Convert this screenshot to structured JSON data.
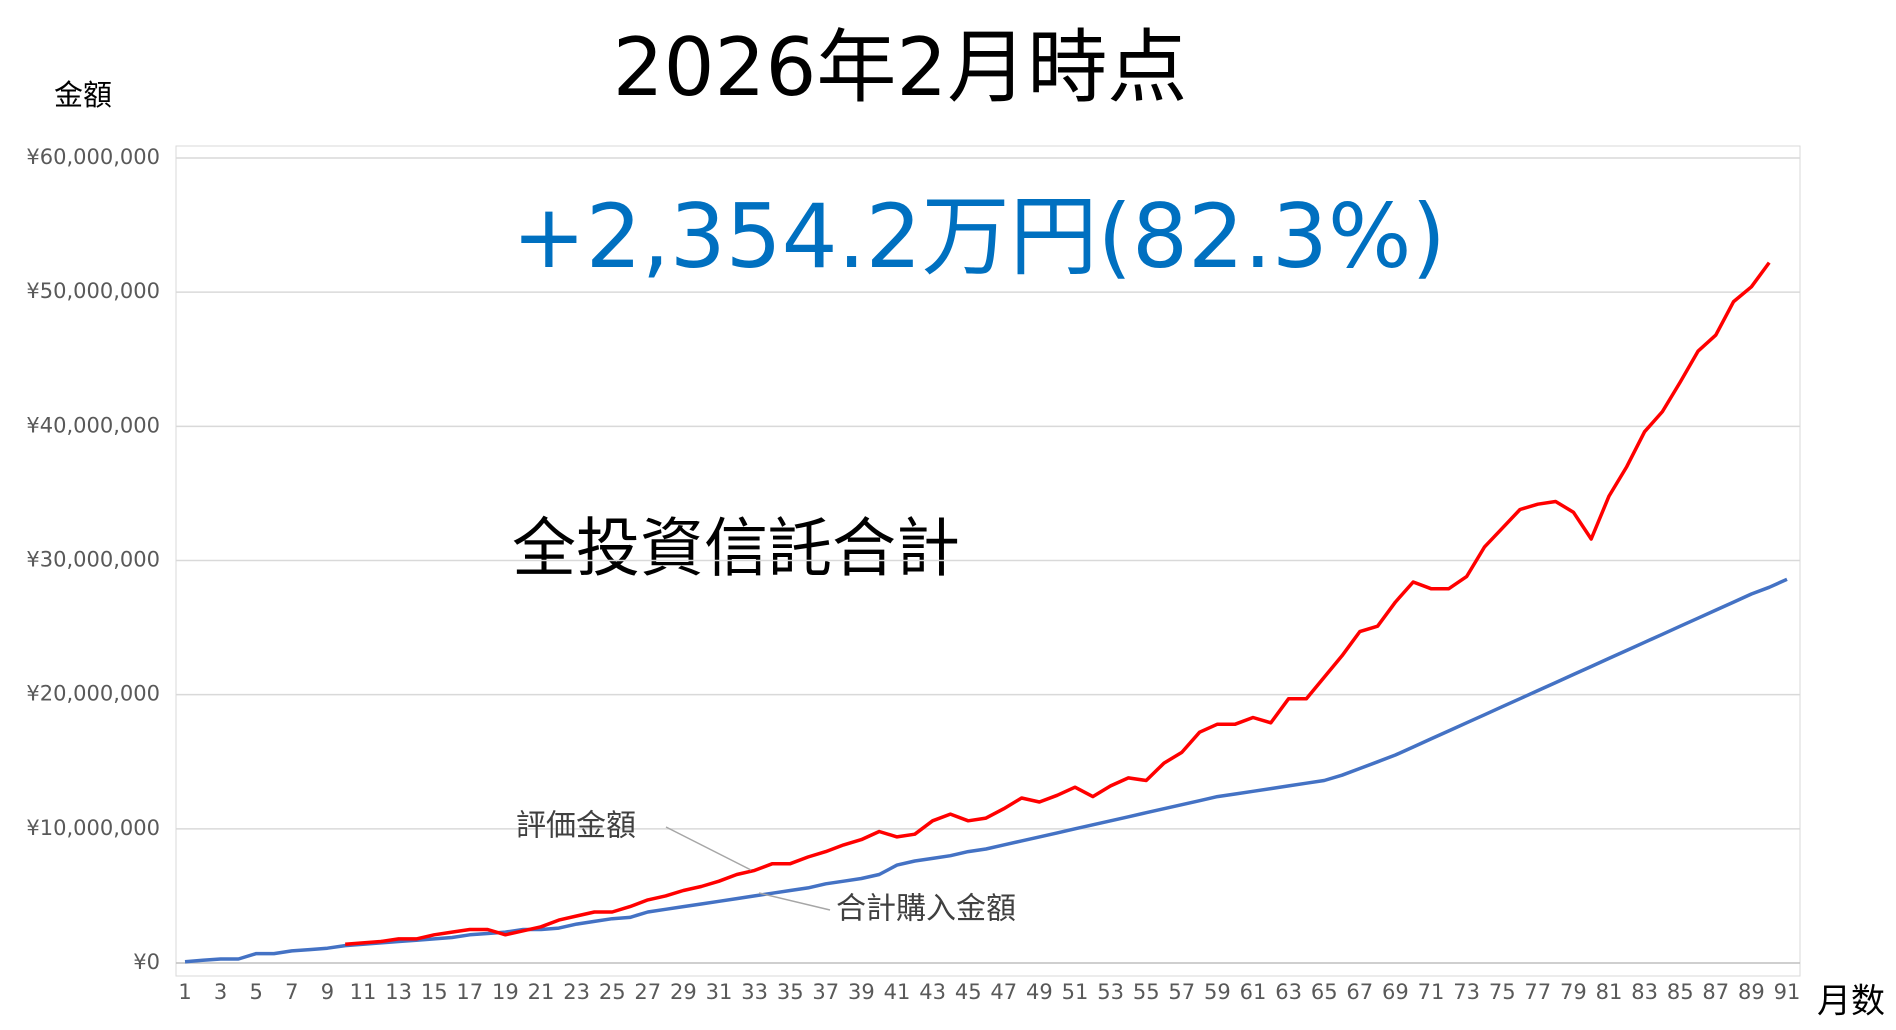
{
  "chart_data": {
    "type": "line",
    "title": "2026年2月時点",
    "annotations": [
      "+2,354.2万円(82.3%)",
      "全投資信託合計"
    ],
    "y_label": "金額",
    "x_label": "月数",
    "categories": [
      1,
      null,
      3,
      null,
      5,
      null,
      7,
      null,
      9,
      null,
      11,
      null,
      13,
      null,
      15,
      null,
      17,
      null,
      19,
      null,
      21,
      null,
      23,
      null,
      25,
      null,
      27,
      null,
      29,
      null,
      31,
      null,
      33,
      null,
      35,
      null,
      37,
      null,
      39,
      null,
      41,
      null,
      43,
      null,
      45,
      null,
      47,
      null,
      49,
      null,
      51,
      null,
      53,
      null,
      55,
      null,
      57,
      null,
      59,
      null,
      61,
      null,
      63,
      null,
      65,
      null,
      67,
      null,
      69,
      null,
      71,
      null,
      73,
      null,
      75,
      null,
      77,
      null,
      79,
      null,
      81,
      null,
      83,
      null,
      85,
      null,
      87,
      null,
      89,
      null,
      91
    ],
    "series": [
      {
        "name": "評価金額",
        "color": "#ff0000",
        "values": [
          null,
          null,
          null,
          null,
          null,
          null,
          null,
          null,
          null,
          1400000,
          1500000,
          1600000,
          1800000,
          1800000,
          2100000,
          2300000,
          2500000,
          2500000,
          2100000,
          2400000,
          2700000,
          3200000,
          3500000,
          3800000,
          3800000,
          4200000,
          4700000,
          5000000,
          5400000,
          5700000,
          6100000,
          6600000,
          6900000,
          7400000,
          7400000,
          7900000,
          8300000,
          8800000,
          9200000,
          9800000,
          9400000,
          9600000,
          10600000,
          11100000,
          10600000,
          10800000,
          11500000,
          12300000,
          12000000,
          12500000,
          13100000,
          12400000,
          13200000,
          13800000,
          13600000,
          14900000,
          15700000,
          17200000,
          17800000,
          17800000,
          18300000,
          17900000,
          19700000,
          19700000,
          21300000,
          22900000,
          24700000,
          25100000,
          26900000,
          28400000,
          27900000,
          27900000,
          28800000,
          31000000,
          32400000,
          33800000,
          34200000,
          34400000,
          33600000,
          31600000,
          34800000,
          37000000,
          39600000,
          41100000,
          43300000,
          45600000,
          46800000,
          49300000,
          50400000,
          52200000,
          null
        ]
      },
      {
        "name": "合計購入金額",
        "color": "#4472c4",
        "values": [
          100000,
          200000,
          300000,
          300000,
          700000,
          700000,
          900000,
          1000000,
          1100000,
          1300000,
          1400000,
          1500000,
          1600000,
          1700000,
          1800000,
          1900000,
          2100000,
          2200000,
          2300000,
          2500000,
          2500000,
          2600000,
          2900000,
          3100000,
          3300000,
          3400000,
          3800000,
          4000000,
          4200000,
          4400000,
          4600000,
          4800000,
          5000000,
          5200000,
          5400000,
          5600000,
          5900000,
          6100000,
          6300000,
          6600000,
          7300000,
          7600000,
          7800000,
          8000000,
          8300000,
          8500000,
          8800000,
          9100000,
          9400000,
          9700000,
          10000000,
          10300000,
          10600000,
          10900000,
          11200000,
          11500000,
          11800000,
          12100000,
          12400000,
          12600000,
          12800000,
          13000000,
          13200000,
          13400000,
          13600000,
          14000000,
          14500000,
          15000000,
          15500000,
          16100000,
          16700000,
          17300000,
          17900000,
          18500000,
          19100000,
          19700000,
          20300000,
          20900000,
          21500000,
          22100000,
          22700000,
          23300000,
          23900000,
          24500000,
          25100000,
          25700000,
          26300000,
          26900000,
          27500000,
          28000000,
          28600000
        ]
      }
    ],
    "ylim": [
      0,
      60000000
    ],
    "yticks": [
      {
        "value": 0,
        "label": "¥0"
      },
      {
        "value": 10000000,
        "label": "¥10,000,000"
      },
      {
        "value": 20000000,
        "label": "¥20,000,000"
      },
      {
        "value": 30000000,
        "label": "¥30,000,000"
      },
      {
        "value": 40000000,
        "label": "¥40,000,000"
      },
      {
        "value": 50000000,
        "label": "¥50,000,000"
      },
      {
        "value": 60000000,
        "label": "¥60,000,000"
      }
    ],
    "grid": true
  }
}
